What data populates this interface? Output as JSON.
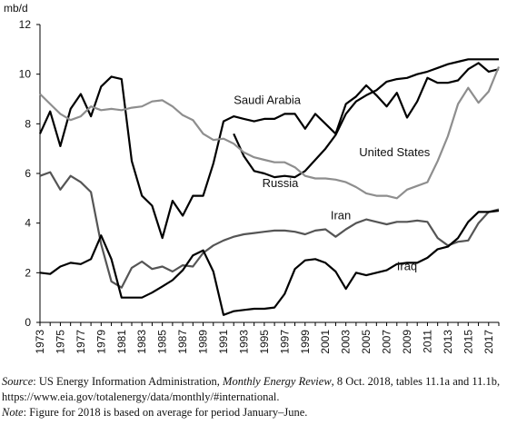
{
  "chart_data": {
    "type": "line",
    "ylabel": "mb/d",
    "ylim": [
      0,
      12
    ],
    "yticks": [
      0,
      2,
      4,
      6,
      8,
      10,
      12
    ],
    "xlim": [
      1973,
      2018
    ],
    "xtick_labels": [
      "1973",
      "1975",
      "1977",
      "1979",
      "1981",
      "1983",
      "1985",
      "1987",
      "1989",
      "1991",
      "1993",
      "1995",
      "1997",
      "1999",
      "2001",
      "2003",
      "2005",
      "2007",
      "2009",
      "2011",
      "2013",
      "2015",
      "2017"
    ],
    "grid": false,
    "series": [
      {
        "name": "Saudi Arabia",
        "color": "#000000",
        "x": [
          1973,
          1974,
          1975,
          1976,
          1977,
          1978,
          1979,
          1980,
          1981,
          1982,
          1983,
          1984,
          1985,
          1986,
          1987,
          1988,
          1989,
          1990,
          1991,
          1992,
          1993,
          1994,
          1995,
          1996,
          1997,
          1998,
          1999,
          2000,
          2001,
          2002,
          2003,
          2004,
          2005,
          2006,
          2007,
          2008,
          2009,
          2010,
          2011,
          2012,
          2013,
          2014,
          2015,
          2016,
          2017,
          2018
        ],
        "values": [
          7.6,
          8.5,
          7.1,
          8.6,
          9.2,
          8.3,
          9.5,
          9.9,
          9.8,
          6.5,
          5.1,
          4.7,
          3.4,
          4.9,
          4.3,
          5.1,
          5.1,
          6.4,
          8.1,
          8.3,
          8.2,
          8.1,
          8.2,
          8.2,
          8.4,
          8.4,
          7.8,
          8.4,
          8.0,
          7.6,
          8.8,
          9.1,
          9.55,
          9.15,
          8.7,
          9.25,
          8.25,
          8.9,
          9.85,
          9.65,
          9.65,
          9.75,
          10.2,
          10.45,
          10.1,
          10.2
        ]
      },
      {
        "name": "Russia",
        "color": "#000000",
        "x": [
          1992,
          1993,
          1994,
          1995,
          1996,
          1997,
          1998,
          1999,
          2000,
          2001,
          2002,
          2003,
          2004,
          2005,
          2006,
          2007,
          2008,
          2009,
          2010,
          2011,
          2012,
          2013,
          2014,
          2015,
          2016,
          2017,
          2018
        ],
        "values": [
          7.6,
          6.7,
          6.1,
          6.0,
          5.85,
          5.9,
          5.85,
          6.1,
          6.55,
          7.0,
          7.55,
          8.4,
          8.9,
          9.15,
          9.35,
          9.7,
          9.8,
          9.85,
          10.0,
          10.1,
          10.25,
          10.4,
          10.5,
          10.6,
          10.6,
          10.6,
          10.6
        ]
      },
      {
        "name": "United States",
        "color": "#8e8e8e",
        "x": [
          1973,
          1974,
          1975,
          1976,
          1977,
          1978,
          1979,
          1980,
          1981,
          1982,
          1983,
          1984,
          1985,
          1986,
          1987,
          1988,
          1989,
          1990,
          1991,
          1992,
          1993,
          1994,
          1995,
          1996,
          1997,
          1998,
          1999,
          2000,
          2001,
          2002,
          2003,
          2004,
          2005,
          2006,
          2007,
          2008,
          2009,
          2010,
          2011,
          2012,
          2013,
          2014,
          2015,
          2016,
          2017,
          2018
        ],
        "values": [
          9.2,
          8.8,
          8.4,
          8.15,
          8.3,
          8.7,
          8.55,
          8.6,
          8.55,
          8.65,
          8.7,
          8.9,
          8.95,
          8.7,
          8.35,
          8.15,
          7.6,
          7.35,
          7.4,
          7.2,
          6.85,
          6.65,
          6.55,
          6.45,
          6.45,
          6.25,
          5.9,
          5.8,
          5.8,
          5.75,
          5.65,
          5.45,
          5.2,
          5.1,
          5.1,
          5.0,
          5.35,
          5.5,
          5.65,
          6.5,
          7.5,
          8.8,
          9.45,
          8.85,
          9.3,
          10.3
        ]
      },
      {
        "name": "Iran",
        "color": "#555555",
        "x": [
          1973,
          1974,
          1975,
          1976,
          1977,
          1978,
          1979,
          1980,
          1981,
          1982,
          1983,
          1984,
          1985,
          1986,
          1987,
          1988,
          1989,
          1990,
          1991,
          1992,
          1993,
          1994,
          1995,
          1996,
          1997,
          1998,
          1999,
          2000,
          2001,
          2002,
          2003,
          2004,
          2005,
          2006,
          2007,
          2008,
          2009,
          2010,
          2011,
          2012,
          2013,
          2014,
          2015,
          2016,
          2017,
          2018
        ],
        "values": [
          5.9,
          6.05,
          5.35,
          5.9,
          5.65,
          5.25,
          3.15,
          1.65,
          1.4,
          2.2,
          2.45,
          2.15,
          2.25,
          2.05,
          2.3,
          2.25,
          2.8,
          3.1,
          3.3,
          3.45,
          3.55,
          3.6,
          3.65,
          3.7,
          3.7,
          3.65,
          3.55,
          3.7,
          3.75,
          3.45,
          3.75,
          4.0,
          4.15,
          4.05,
          3.95,
          4.05,
          4.05,
          4.1,
          4.05,
          3.4,
          3.1,
          3.25,
          3.3,
          4.0,
          4.45,
          4.55
        ]
      },
      {
        "name": "Iraq",
        "color": "#000000",
        "x": [
          1973,
          1974,
          1975,
          1976,
          1977,
          1978,
          1979,
          1980,
          1981,
          1982,
          1983,
          1984,
          1985,
          1986,
          1987,
          1988,
          1989,
          1990,
          1991,
          1992,
          1993,
          1994,
          1995,
          1996,
          1997,
          1998,
          1999,
          2000,
          2001,
          2002,
          2003,
          2004,
          2005,
          2006,
          2007,
          2008,
          2009,
          2010,
          2011,
          2012,
          2013,
          2014,
          2015,
          2016,
          2017,
          2018
        ],
        "values": [
          2.0,
          1.95,
          2.25,
          2.4,
          2.35,
          2.55,
          3.5,
          2.55,
          1.0,
          1.0,
          1.0,
          1.2,
          1.45,
          1.7,
          2.1,
          2.7,
          2.9,
          2.05,
          0.3,
          0.45,
          0.5,
          0.55,
          0.55,
          0.6,
          1.15,
          2.15,
          2.5,
          2.55,
          2.4,
          2.05,
          1.35,
          2.0,
          1.9,
          2.0,
          2.1,
          2.35,
          2.4,
          2.4,
          2.6,
          2.95,
          3.05,
          3.4,
          4.05,
          4.45,
          4.45,
          4.5
        ]
      }
    ],
    "annotations": [
      {
        "text": "Saudi Arabia",
        "x": 1992.0,
        "y": 8.8
      },
      {
        "text": "United States",
        "x": 2004.3,
        "y": 6.7
      },
      {
        "text": "Russia",
        "x": 1994.8,
        "y": 5.45
      },
      {
        "text": "Iran",
        "x": 2001.5,
        "y": 4.15
      },
      {
        "text": "Iraq",
        "x": 2008.0,
        "y": 2.1
      }
    ]
  },
  "notes": {
    "source_label": "Source",
    "source_text_1": ": US Energy Information Administration, ",
    "source_italic": "Monthly Energy Review",
    "source_text_2": ", 8 Oct. 2018, tables 11.1a and 11.1b,",
    "source_line2": "https://www.eia.gov/totalenergy/data/monthly/#international.",
    "note_label": "Note",
    "note_text": ": Figure for 2018 is based on average for period January–June."
  }
}
